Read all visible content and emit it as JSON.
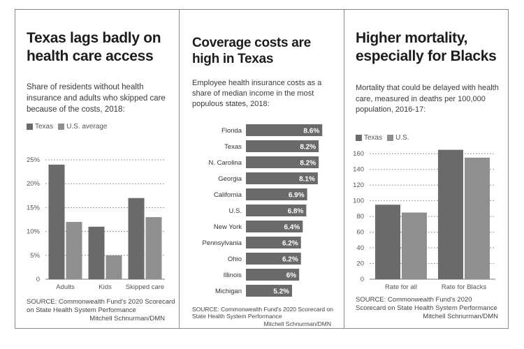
{
  "panels": [
    {
      "title": "Texas lags badly on health care access",
      "subtitle": "Share of residents without health insurance and adults who skipped care because of the costs, 2018:",
      "legend": [
        "Texas",
        "U.S. average"
      ],
      "source": "SOURCE: Commonwealth Fund's 2020 Scorecard on State Health System Performance",
      "credit": "Mitchell Schnurman/DMN"
    },
    {
      "title": "Coverage costs are high in Texas",
      "subtitle": "Employee health insurance costs as a share of median income in the most populous states, 2018:",
      "source": "SOURCE: Commonwealth Fund's 2020 Scorecard on State Health System Performance",
      "credit": "Mitchell Schnurman/DMN"
    },
    {
      "title": "Higher mortality, especially for Blacks",
      "subtitle": "Mortality that could be delayed with health care, measured in deaths per 100,000 population, 2016-17:",
      "legend": [
        "Texas",
        "U.S."
      ],
      "source": "SOURCE: Commonwealth Fund's 2020 Scorecard on State Health System Performance",
      "credit": "Mitchell Schnurman/DMN"
    }
  ],
  "colors": {
    "texas": "#6a6a6a",
    "us": "#8f8f8f",
    "grid": "#9a9a9a",
    "axis_text": "#555555"
  },
  "chart_data": [
    {
      "type": "bar",
      "categories": [
        "Adults",
        "Kids",
        "Skipped care"
      ],
      "series": [
        {
          "name": "Texas",
          "values": [
            24,
            11,
            17
          ]
        },
        {
          "name": "U.S. average",
          "values": [
            12,
            5,
            13
          ]
        }
      ],
      "yticks": [
        "0",
        "5%",
        "10%",
        "15%",
        "20%",
        "25%"
      ],
      "ylim": [
        0,
        25
      ],
      "grid": true
    },
    {
      "type": "bar",
      "orientation": "horizontal",
      "categories": [
        "Florida",
        "Texas",
        "N. Carolina",
        "Georgia",
        "California",
        "U.S.",
        "New York",
        "Pennsylvania",
        "Ohio",
        "Illinois",
        "Michigan"
      ],
      "values": [
        8.6,
        8.2,
        8.2,
        8.1,
        6.9,
        6.8,
        6.4,
        6.2,
        6.2,
        6.0,
        5.2
      ],
      "labels": [
        "8.6%",
        "8.2%",
        "8.2%",
        "8.1%",
        "6.9%",
        "6.8%",
        "6.4%",
        "6.2%",
        "6.2%",
        "6%",
        "5.2%"
      ]
    },
    {
      "type": "bar",
      "categories": [
        "Rate for all",
        "Rate for Blacks"
      ],
      "series": [
        {
          "name": "Texas",
          "values": [
            95,
            165
          ]
        },
        {
          "name": "U.S.",
          "values": [
            85,
            155
          ]
        }
      ],
      "yticks": [
        "0",
        "20",
        "40",
        "60",
        "80",
        "100",
        "120",
        "140",
        "160"
      ],
      "ylim": [
        0,
        170
      ],
      "grid": true
    }
  ]
}
